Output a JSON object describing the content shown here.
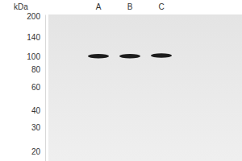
{
  "chart_data": {
    "type": "western_blot",
    "y_label": "kDa",
    "categories": [
      "A",
      "B",
      "C"
    ],
    "values": [
      101,
      101,
      102
    ],
    "color": "#1c1c1c",
    "ylim": [
      17,
      205
    ],
    "yticks": [
      200,
      140,
      100,
      80,
      60,
      40,
      30,
      20
    ],
    "log": "y"
  }
}
